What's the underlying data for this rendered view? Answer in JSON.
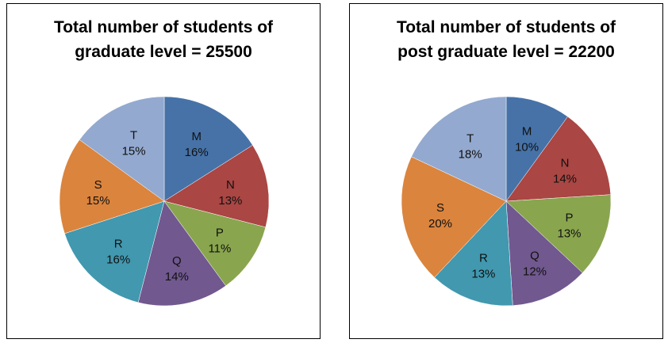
{
  "chart_data": [
    {
      "type": "pie",
      "title": [
        "Total number of students of",
        "graduate level = 25500"
      ],
      "categories": [
        "M",
        "N",
        "P",
        "Q",
        "R",
        "S",
        "T"
      ],
      "values": [
        16,
        13,
        11,
        14,
        16,
        15,
        15
      ],
      "value_labels": [
        "16%",
        "13%",
        "11%",
        "14%",
        "16%",
        "15%",
        "15%"
      ],
      "colors": [
        "#4672A8",
        "#AA4643",
        "#89A54E",
        "#71588F",
        "#4198AF",
        "#DB843D",
        "#93A9CF"
      ]
    },
    {
      "type": "pie",
      "title": [
        "Total number of students of",
        "post graduate level = 22200"
      ],
      "categories": [
        "M",
        "N",
        "P",
        "Q",
        "R",
        "S",
        "T"
      ],
      "values": [
        10,
        14,
        13,
        12,
        13,
        20,
        18
      ],
      "value_labels": [
        "10%",
        "14%",
        "13%",
        "12%",
        "13%",
        "20%",
        "18%"
      ],
      "colors": [
        "#4672A8",
        "#AA4643",
        "#89A54E",
        "#71588F",
        "#4198AF",
        "#DB843D",
        "#93A9CF"
      ]
    }
  ]
}
